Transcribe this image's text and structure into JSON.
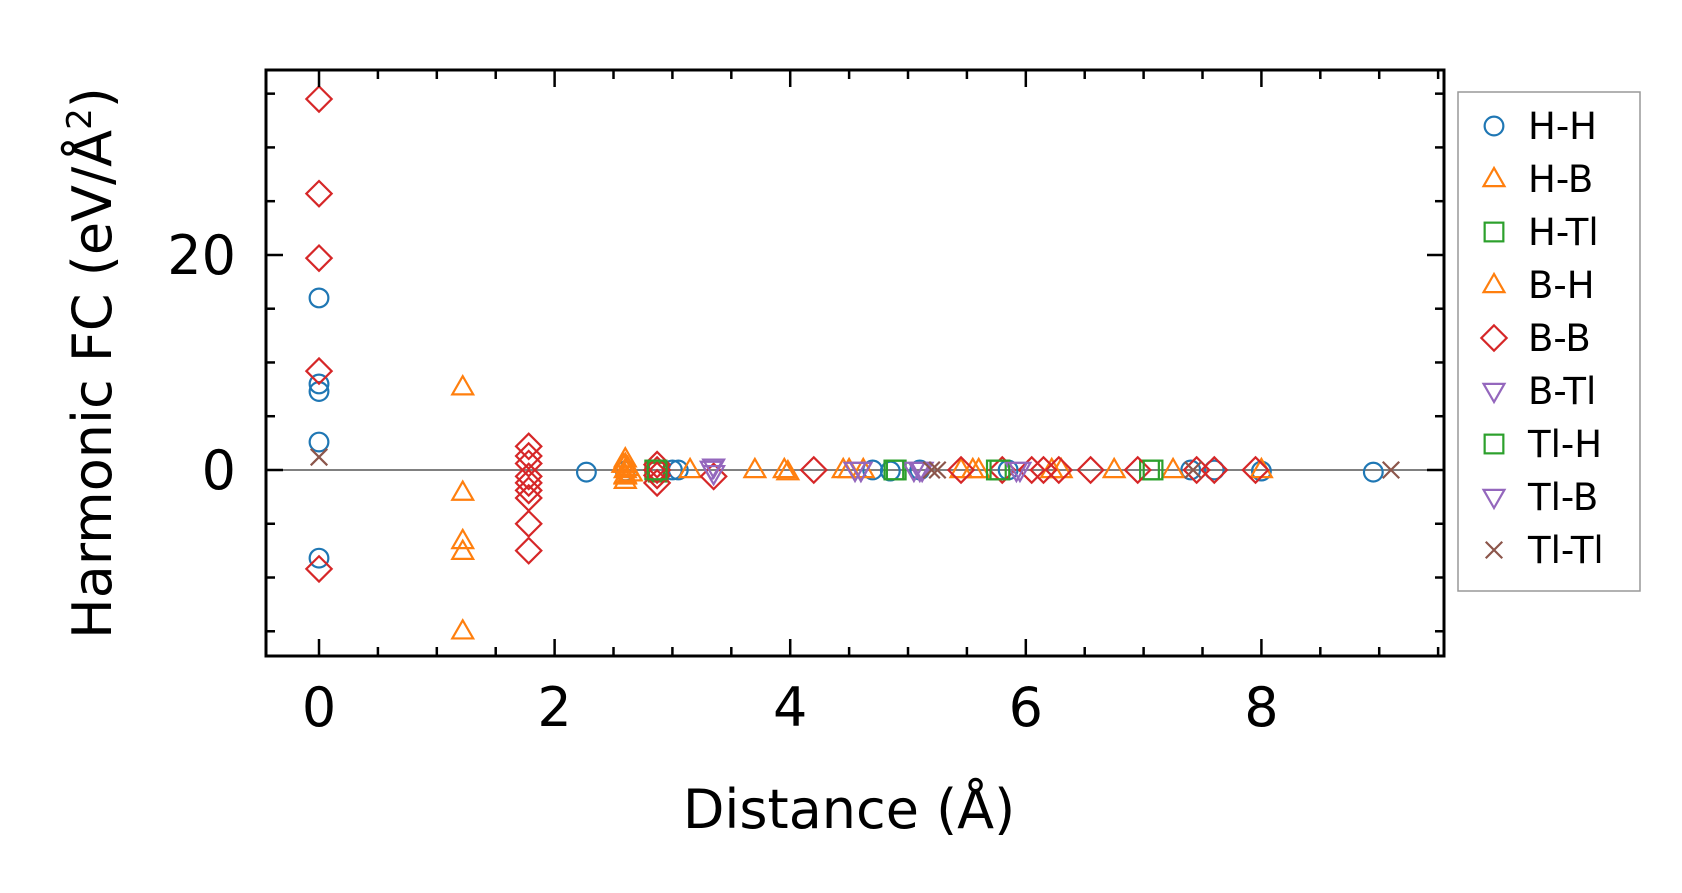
{
  "chart_data": {
    "type": "scatter",
    "title": "",
    "xlabel": "Distance (Å)",
    "ylabel": "Harmonic FC (eV/Å²)",
    "ylabel_main": "Harmonic FC (eV/Å",
    "ylabel_sup": "2",
    "ylabel_tail": ")",
    "xlim": [
      -0.45,
      9.55
    ],
    "ylim": [
      -17.3,
      37.2
    ],
    "xticks": [
      0,
      2,
      4,
      6,
      8
    ],
    "xtick_labels": [
      "0",
      "2",
      "4",
      "6",
      "8"
    ],
    "xminor": [
      -0.5,
      0.5,
      1,
      1.5,
      2.5,
      3,
      3.5,
      4.5,
      5,
      5.5,
      6.5,
      7,
      7.5,
      8.5,
      9,
      9.5
    ],
    "yticks": [
      0,
      20
    ],
    "ytick_labels": [
      "0",
      "20"
    ],
    "yminor": [
      -15,
      -10,
      -5,
      5,
      10,
      15,
      25,
      30,
      35
    ],
    "reference_line_y": 0,
    "legend_position": "outside-right",
    "series": [
      {
        "name": "H-H",
        "label": "H-H",
        "marker": "circle",
        "color": "#1f77b4",
        "points": [
          [
            0,
            16
          ],
          [
            0,
            8
          ],
          [
            0,
            7.3
          ],
          [
            0,
            2.6
          ],
          [
            0,
            -8.2
          ],
          [
            2.27,
            -0.2
          ],
          [
            2.6,
            -0.1
          ],
          [
            3.0,
            0
          ],
          [
            3.05,
            0
          ],
          [
            4.7,
            0
          ],
          [
            4.85,
            -0.1
          ],
          [
            5.1,
            0
          ],
          [
            5.85,
            0
          ],
          [
            7.4,
            0
          ],
          [
            7.6,
            0
          ],
          [
            8.0,
            -0.1
          ],
          [
            8.95,
            -0.2
          ]
        ]
      },
      {
        "name": "H-B",
        "label": "H-B",
        "marker": "triangle-up",
        "color": "#ff7f0e",
        "points": [
          [
            1.22,
            7.7
          ],
          [
            1.22,
            -2.1
          ],
          [
            1.22,
            -6.6
          ],
          [
            1.22,
            -7.6
          ],
          [
            1.22,
            -15.0
          ],
          [
            2.6,
            1.0
          ],
          [
            2.6,
            0.5
          ],
          [
            2.6,
            0
          ],
          [
            2.6,
            -0.5
          ],
          [
            2.6,
            -1.0
          ],
          [
            2.62,
            0.2
          ],
          [
            2.65,
            -0.3
          ],
          [
            3.15,
            0
          ],
          [
            3.7,
            0
          ],
          [
            3.95,
            0
          ],
          [
            4.45,
            0
          ],
          [
            4.62,
            0
          ],
          [
            5.45,
            0
          ],
          [
            5.6,
            0
          ],
          [
            6.3,
            0
          ],
          [
            6.75,
            0
          ],
          [
            7.25,
            0
          ],
          [
            8.0,
            0
          ]
        ]
      },
      {
        "name": "H-Tl",
        "label": "H-Tl",
        "marker": "square",
        "color": "#2ca02c",
        "points": [
          [
            2.85,
            0
          ],
          [
            2.88,
            -0.2
          ],
          [
            4.9,
            0
          ],
          [
            5.75,
            0
          ],
          [
            7.05,
            0
          ]
        ]
      },
      {
        "name": "B-H",
        "label": "B-H",
        "marker": "triangle-up",
        "color": "#ff7f0e",
        "points": [
          [
            2.58,
            0.5
          ],
          [
            2.6,
            -0.6
          ],
          [
            3.98,
            -0.2
          ],
          [
            4.5,
            0
          ],
          [
            5.55,
            0
          ],
          [
            6.22,
            0
          ]
        ]
      },
      {
        "name": "B-B",
        "label": "B-B",
        "marker": "diamond",
        "color": "#d62728",
        "points": [
          [
            0,
            34.5
          ],
          [
            0,
            25.7
          ],
          [
            0,
            19.7
          ],
          [
            0,
            9.2
          ],
          [
            0,
            -9.2
          ],
          [
            1.78,
            2.2
          ],
          [
            1.78,
            1.3
          ],
          [
            1.78,
            0.6
          ],
          [
            1.78,
            -0.6
          ],
          [
            1.78,
            -1.2
          ],
          [
            1.78,
            -1.9
          ],
          [
            1.78,
            -2.6
          ],
          [
            1.78,
            -5.0
          ],
          [
            1.78,
            -7.5
          ],
          [
            2.87,
            0.5
          ],
          [
            2.87,
            0
          ],
          [
            2.87,
            -0.5
          ],
          [
            2.87,
            -1.2
          ],
          [
            3.35,
            -0.6
          ],
          [
            4.2,
            0
          ],
          [
            5.45,
            0
          ],
          [
            5.8,
            0
          ],
          [
            6.05,
            0
          ],
          [
            6.15,
            0
          ],
          [
            6.28,
            0
          ],
          [
            6.55,
            0
          ],
          [
            6.95,
            0
          ],
          [
            7.45,
            0
          ],
          [
            7.6,
            0
          ],
          [
            7.95,
            0
          ]
        ]
      },
      {
        "name": "B-Tl",
        "label": "B-Tl",
        "marker": "triangle-down",
        "color": "#9467bd",
        "points": [
          [
            3.35,
            0.3
          ],
          [
            3.35,
            -0.3
          ],
          [
            4.55,
            0
          ],
          [
            4.6,
            0
          ],
          [
            5.05,
            0
          ],
          [
            5.12,
            0
          ],
          [
            5.92,
            0
          ]
        ]
      },
      {
        "name": "Tl-H",
        "label": "Tl-H",
        "marker": "square",
        "color": "#2ca02c",
        "points": [
          [
            2.87,
            0
          ],
          [
            4.88,
            0
          ],
          [
            5.78,
            0
          ],
          [
            7.08,
            0
          ]
        ]
      },
      {
        "name": "Tl-B",
        "label": "Tl-B",
        "marker": "triangle-down",
        "color": "#9467bd",
        "points": [
          [
            3.33,
            0.1
          ],
          [
            4.6,
            0
          ],
          [
            5.1,
            0
          ],
          [
            5.95,
            0
          ]
        ]
      },
      {
        "name": "Tl-Tl",
        "label": "Tl-Tl",
        "marker": "x",
        "color": "#8c564b",
        "points": [
          [
            0,
            1.2
          ],
          [
            5.2,
            0
          ],
          [
            5.25,
            0
          ],
          [
            7.42,
            0
          ],
          [
            9.1,
            0
          ]
        ]
      }
    ]
  }
}
